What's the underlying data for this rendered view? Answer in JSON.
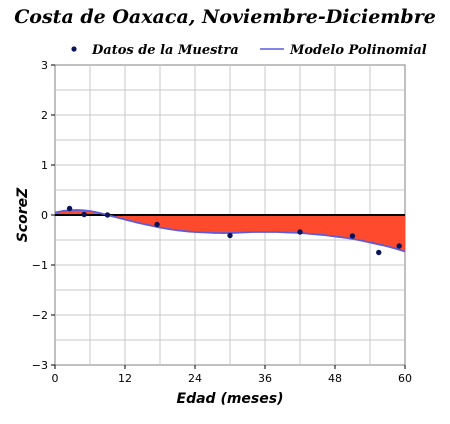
{
  "chart_data": {
    "type": "scatter",
    "title": "Costa de Oaxaca, Noviembre-Diciembre",
    "xlabel": "Edad (meses)",
    "ylabel": "ScoreZ",
    "xlim": [
      0,
      60
    ],
    "ylim": [
      -3,
      3
    ],
    "xticks": [
      0,
      12,
      24,
      36,
      48,
      60
    ],
    "yticks": [
      -3,
      -2,
      -1,
      0,
      1,
      2,
      3
    ],
    "grid": true,
    "legend_position": "top",
    "series": [
      {
        "name": "Datos de la Muestra",
        "kind": "points",
        "color": "#0b1457",
        "x": [
          2.5,
          5,
          9,
          17.5,
          30,
          42,
          51,
          55.5,
          59
        ],
        "y": [
          0.13,
          0.01,
          0.0,
          -0.19,
          -0.41,
          -0.34,
          -0.42,
          -0.75,
          -0.62
        ]
      },
      {
        "name": "Modelo Polinomial",
        "kind": "curve",
        "color": "#5c5cdc",
        "x": [
          0,
          2,
          4,
          6,
          8,
          10,
          12,
          14,
          16,
          18,
          20,
          22,
          24,
          26,
          28,
          30,
          32,
          34,
          36,
          38,
          40,
          42,
          44,
          46,
          48,
          50,
          52,
          54,
          56,
          58,
          60
        ],
        "y": [
          0.05,
          0.09,
          0.1,
          0.08,
          0.03,
          -0.03,
          -0.09,
          -0.15,
          -0.2,
          -0.25,
          -0.29,
          -0.32,
          -0.34,
          -0.35,
          -0.36,
          -0.36,
          -0.35,
          -0.34,
          -0.34,
          -0.34,
          -0.35,
          -0.36,
          -0.38,
          -0.4,
          -0.43,
          -0.46,
          -0.5,
          -0.55,
          -0.6,
          -0.66,
          -0.73
        ]
      }
    ],
    "fill_color": "#ff4a2e",
    "zero_line_color": "#000000"
  }
}
